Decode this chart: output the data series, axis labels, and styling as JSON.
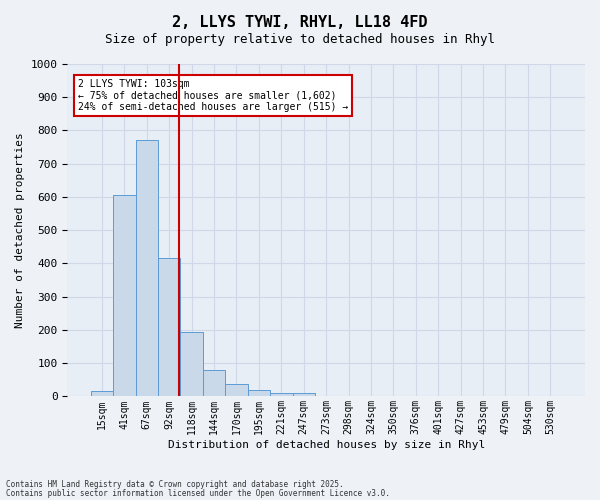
{
  "title": "2, LLYS TYWI, RHYL, LL18 4FD",
  "subtitle": "Size of property relative to detached houses in Rhyl",
  "xlabel": "Distribution of detached houses by size in Rhyl",
  "ylabel": "Number of detached properties",
  "bin_labels": [
    "15sqm",
    "41sqm",
    "67sqm",
    "92sqm",
    "118sqm",
    "144sqm",
    "170sqm",
    "195sqm",
    "221sqm",
    "247sqm",
    "273sqm",
    "298sqm",
    "324sqm",
    "350sqm",
    "376sqm",
    "401sqm",
    "427sqm",
    "453sqm",
    "479sqm",
    "504sqm",
    "530sqm"
  ],
  "bar_values": [
    15,
    605,
    770,
    415,
    195,
    78,
    38,
    18,
    10,
    10,
    0,
    0,
    0,
    0,
    0,
    0,
    0,
    0,
    0,
    0,
    0
  ],
  "bar_color": "#c9d9ea",
  "bar_edge_color": "#5b9bd5",
  "vline_color": "#cc0000",
  "annotation_line1": "2 LLYS TYWI: 103sqm",
  "annotation_line2": "← 75% of detached houses are smaller (1,602)",
  "annotation_line3": "24% of semi-detached houses are larger (515) →",
  "annotation_box_color": "#cc0000",
  "ylim": [
    0,
    1000
  ],
  "yticks": [
    0,
    100,
    200,
    300,
    400,
    500,
    600,
    700,
    800,
    900,
    1000
  ],
  "grid_color": "#d0d8e8",
  "background_color": "#e8eef5",
  "fig_background_color": "#eef2f7",
  "footer_line1": "Contains HM Land Registry data © Crown copyright and database right 2025.",
  "footer_line2": "Contains public sector information licensed under the Open Government Licence v3.0."
}
